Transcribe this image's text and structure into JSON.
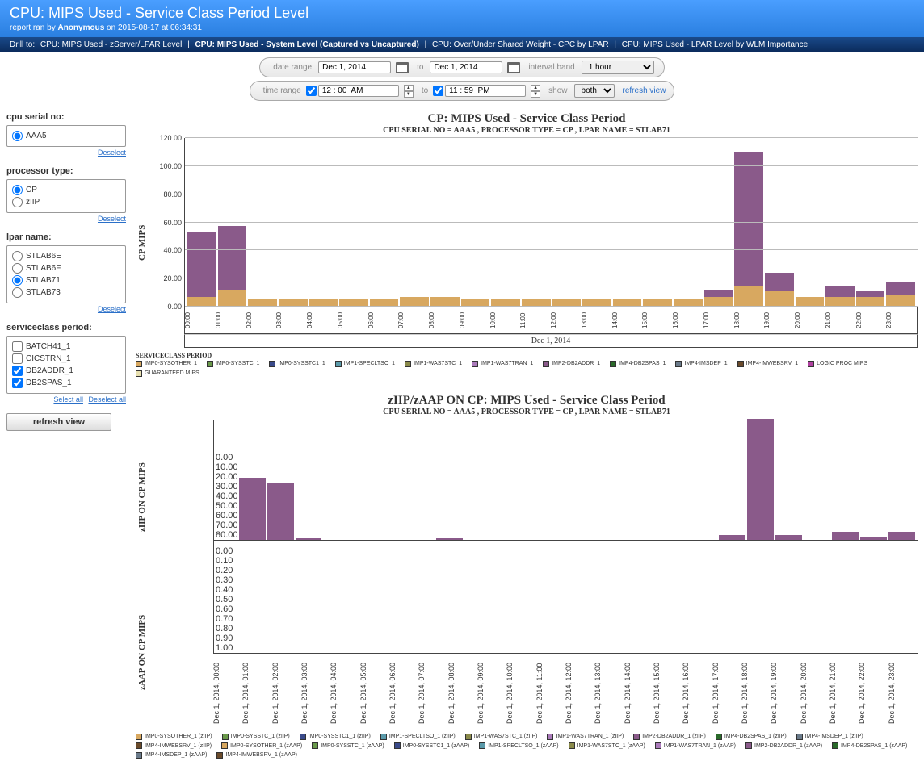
{
  "header": {
    "title": "CPU: MIPS Used - Service Class Period Level",
    "meta_prefix": "report ran by ",
    "meta_user": "Anonymous",
    "meta_suffix": " on 2015-08-17 at 06:34:31"
  },
  "drill": {
    "label": "Drill to:",
    "links": [
      "CPU: MIPS Used - zServer/LPAR Level",
      "CPU: MIPS Used - System Level (Captured vs Uncaptured)",
      "CPU: Over/Under Shared Weight - CPC by LPAR",
      "CPU: MIPS Used - LPAR Level by WLM Importance"
    ]
  },
  "controls": {
    "date_range_label": "date range",
    "date_from": "Dec 1, 2014",
    "to_label": "to",
    "date_to": "Dec 1, 2014",
    "interval_label": "interval band",
    "interval_value": "1 hour",
    "time_range_label": "time range",
    "time_from": "12 : 00  AM",
    "time_to": "11 : 59  PM",
    "show_label": "show",
    "show_value": "both",
    "refresh": "refresh view"
  },
  "sidebar": {
    "cpu_serial": {
      "title": "cpu serial no:",
      "options": [
        "AAA5"
      ],
      "selected": 0,
      "deselect": "Deselect"
    },
    "proc_type": {
      "title": "processor type:",
      "options": [
        "CP",
        "zIIP"
      ],
      "selected": 0,
      "deselect": "Deselect"
    },
    "lpar": {
      "title": "lpar name:",
      "options": [
        "STLAB6E",
        "STLAB6F",
        "STLAB71",
        "STLAB73"
      ],
      "selected": 2,
      "deselect": "Deselect"
    },
    "svc": {
      "title": "serviceclass period:",
      "options": [
        "BATCH41_1",
        "CICSTRN_1",
        "DB2ADDR_1",
        "DB2SPAS_1"
      ],
      "checked": [
        2,
        3
      ],
      "select_all": "Select all",
      "deselect_all": "Deselect all"
    },
    "refresh_btn": "refresh view"
  },
  "colors": {
    "purple": "#8a5a8a",
    "orange": "#d8a860",
    "green": "#6a9a4a",
    "navy": "#3a4a8a",
    "teal": "#5a9aaa",
    "olive": "#8a8a4a",
    "plum": "#aa7aba",
    "brown": "#6a4a2a",
    "dkgreen": "#2a6a2a",
    "magenta": "#b040a0",
    "cream": "#e8e0b0",
    "slate": "#6a7a8a"
  },
  "chart1": {
    "title": "CP: MIPS Used - Service Class Period",
    "subtitle": "CPU SERIAL NO = AAA5 , PROCESSOR TYPE = CP , LPAR NAME = STLAB71",
    "y_label": "CP MIPS",
    "y_max": 120,
    "y_ticks": [
      0,
      20,
      40,
      60,
      80,
      100,
      120
    ],
    "x_labels": [
      "00:00",
      "01:00",
      "02:00",
      "03:00",
      "04:00",
      "05:00",
      "06:00",
      "07:00",
      "08:00",
      "09:00",
      "10:00",
      "11:00",
      "12:00",
      "13:00",
      "14:00",
      "15:00",
      "16:00",
      "17:00",
      "18:00",
      "19:00",
      "20:00",
      "21:00",
      "22:00",
      "23:00"
    ],
    "x_title": "Dec 1, 2014",
    "bars": [
      {
        "orange": 7,
        "purple": 46
      },
      {
        "orange": 12,
        "purple": 45
      },
      {
        "orange": 6,
        "purple": 0
      },
      {
        "orange": 6,
        "purple": 0
      },
      {
        "orange": 6,
        "purple": 0
      },
      {
        "orange": 6,
        "purple": 0
      },
      {
        "orange": 6,
        "purple": 0
      },
      {
        "orange": 7,
        "purple": 0
      },
      {
        "orange": 7,
        "purple": 0
      },
      {
        "orange": 6,
        "purple": 0
      },
      {
        "orange": 6,
        "purple": 0
      },
      {
        "orange": 6,
        "purple": 0
      },
      {
        "orange": 6,
        "purple": 0
      },
      {
        "orange": 6,
        "purple": 0
      },
      {
        "orange": 6,
        "purple": 0
      },
      {
        "orange": 6,
        "purple": 0
      },
      {
        "orange": 6,
        "purple": 0
      },
      {
        "orange": 7,
        "purple": 5
      },
      {
        "orange": 15,
        "purple": 95
      },
      {
        "orange": 11,
        "purple": 13
      },
      {
        "orange": 7,
        "purple": 0
      },
      {
        "orange": 7,
        "purple": 8
      },
      {
        "orange": 7,
        "purple": 4
      },
      {
        "orange": 8,
        "purple": 9
      }
    ],
    "legend_title": "SERVICECLASS PERIOD",
    "legend": [
      {
        "c": "orange",
        "t": "IMP0-SYSOTHER_1"
      },
      {
        "c": "green",
        "t": "IMP0-SYSSTC_1"
      },
      {
        "c": "navy",
        "t": "IMP0-SYSSTC1_1"
      },
      {
        "c": "teal",
        "t": "IMP1-SPECLTSO_1"
      },
      {
        "c": "olive",
        "t": "IMP1-WAS7STC_1"
      },
      {
        "c": "plum",
        "t": "IMP1-WAS7TRAN_1"
      },
      {
        "c": "purple",
        "t": "IMP2-DB2ADDR_1"
      },
      {
        "c": "dkgreen",
        "t": "IMP4-DB2SPAS_1"
      },
      {
        "c": "slate",
        "t": "IMP4-IMSDEP_1"
      },
      {
        "c": "brown",
        "t": "IMP4-IMWEBSRV_1"
      },
      {
        "c": "magenta",
        "t": "LOGIC PROC MIPS"
      },
      {
        "c": "cream",
        "t": "GUARANTEED MIPS"
      }
    ]
  },
  "chart2": {
    "title": "zIIP/zAAP ON CP: MIPS Used - Service Class Period",
    "subtitle": "CPU SERIAL NO = AAA5 , PROCESSOR TYPE = CP , LPAR NAME = STLAB71",
    "y_label_top": "zIIP ON CP MIPS",
    "y_label_bot": "zAAP ON CP MIPS",
    "top": {
      "y_max": 80,
      "y_ticks": [
        0,
        10,
        20,
        30,
        40,
        50,
        60,
        70,
        80
      ],
      "bars": [
        41,
        38,
        1,
        0,
        0,
        0,
        0,
        1,
        0,
        0,
        0,
        0,
        0,
        0,
        0,
        0,
        0,
        3,
        80,
        3,
        0,
        5,
        2,
        5
      ]
    },
    "bot": {
      "y_max": 1.0,
      "y_ticks": [
        "0.00",
        "0.10",
        "0.20",
        "0.30",
        "0.40",
        "0.50",
        "0.60",
        "0.70",
        "0.80",
        "0.90",
        "1.00"
      ],
      "bars": [
        0,
        0,
        0,
        0,
        0,
        0,
        0,
        0,
        0,
        0,
        0,
        0,
        0,
        0,
        0,
        0,
        0,
        0,
        0,
        0,
        0,
        0,
        0,
        0
      ]
    },
    "x_labels": [
      "Dec 1, 2014, 00:00",
      "Dec 1, 2014, 01:00",
      "Dec 1, 2014, 02:00",
      "Dec 1, 2014, 03:00",
      "Dec 1, 2014, 04:00",
      "Dec 1, 2014, 05:00",
      "Dec 1, 2014, 06:00",
      "Dec 1, 2014, 07:00",
      "Dec 1, 2014, 08:00",
      "Dec 1, 2014, 09:00",
      "Dec 1, 2014, 10:00",
      "Dec 1, 2014, 11:00",
      "Dec 1, 2014, 12:00",
      "Dec 1, 2014, 13:00",
      "Dec 1, 2014, 14:00",
      "Dec 1, 2014, 15:00",
      "Dec 1, 2014, 16:00",
      "Dec 1, 2014, 17:00",
      "Dec 1, 2014, 18:00",
      "Dec 1, 2014, 19:00",
      "Dec 1, 2014, 20:00",
      "Dec 1, 2014, 21:00",
      "Dec 1, 2014, 22:00",
      "Dec 1, 2014, 23:00"
    ],
    "legend": [
      {
        "c": "orange",
        "t": "IMP0-SYSOTHER_1 (zIIP)"
      },
      {
        "c": "green",
        "t": "IMP0-SYSSTC_1 (zIIP)"
      },
      {
        "c": "navy",
        "t": "IMP0-SYSSTC1_1 (zIIP)"
      },
      {
        "c": "teal",
        "t": "IMP1-SPECLTSO_1 (zIIP)"
      },
      {
        "c": "olive",
        "t": "IMP1-WAS7STC_1 (zIIP)"
      },
      {
        "c": "plum",
        "t": "IMP1-WAS7TRAN_1 (zIIP)"
      },
      {
        "c": "purple",
        "t": "IMP2-DB2ADDR_1 (zIIP)"
      },
      {
        "c": "dkgreen",
        "t": "IMP4-DB2SPAS_1 (zIIP)"
      },
      {
        "c": "slate",
        "t": "IMP4-IMSDEP_1 (zIIP)"
      },
      {
        "c": "brown",
        "t": "IMP4-IMWEBSRV_1 (zIIP)"
      },
      {
        "c": "orange",
        "t": "IMP0-SYSOTHER_1 (zAAP)"
      },
      {
        "c": "green",
        "t": "IMP0-SYSSTC_1 (zAAP)"
      },
      {
        "c": "navy",
        "t": "IMP0-SYSSTC1_1 (zAAP)"
      },
      {
        "c": "teal",
        "t": "IMP1-SPECLTSO_1 (zAAP)"
      },
      {
        "c": "olive",
        "t": "IMP1-WAS7STC_1 (zAAP)"
      },
      {
        "c": "plum",
        "t": "IMP1-WAS7TRAN_1 (zAAP)"
      },
      {
        "c": "purple",
        "t": "IMP2-DB2ADDR_1 (zAAP)"
      },
      {
        "c": "dkgreen",
        "t": "IMP4-DB2SPAS_1 (zAAP)"
      },
      {
        "c": "slate",
        "t": "IMP4-IMSDEP_1 (zAAP)"
      },
      {
        "c": "brown",
        "t": "IMP4-IMWEBSRV_1 (zAAP)"
      }
    ]
  }
}
